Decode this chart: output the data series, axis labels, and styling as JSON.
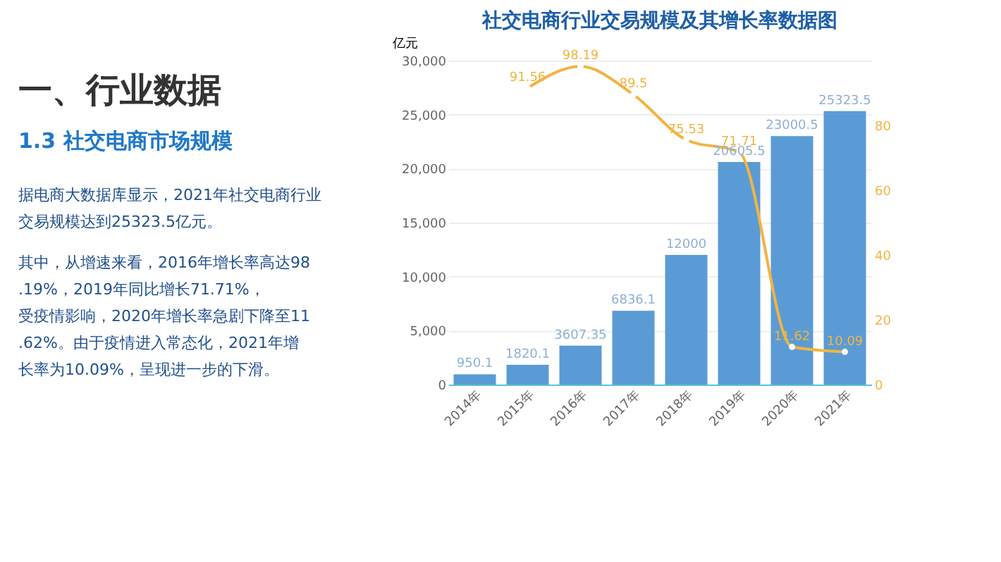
{
  "chart_data": [
    {
      "type": "other",
      "title": "一、行业数据",
      "subtitle": "1.3 社交电商市场规模",
      "annotations": [
        "据电商大数据库显示，2021年社交电商行业交易规模达到25323.5亿元。",
        "其中，从增速来看，2016年增长率高达98.19%，2019年同比增长71.71%，受疫情影响，2020年增长率急剧下降至11.62%。由于疫情进入常态化，2021年增长率为10.09%，呈现进一步的下滑。"
      ]
    },
    {
      "type": "bar",
      "title": "社交电商行业交易规模及其增长率数据图",
      "ylabel": "亿元",
      "categories": [
        "2014年",
        "2015年",
        "2016年",
        "2017年",
        "2018年",
        "2019年",
        "2020年",
        "2021年"
      ],
      "series": [
        {
          "type": "bar",
          "color": "#5b9bd5",
          "values": [
            950.1,
            1820.1,
            3607.35,
            6836.1,
            12000,
            20605.5,
            23000.5,
            25323.5
          ]
        },
        {
          "type": "line",
          "axis": "y2",
          "color": "#f2b441",
          "marker": "circle",
          "values": [
            null,
            91.56,
            98.19,
            89.5,
            75.53,
            71.71,
            11.62,
            10.09
          ]
        }
      ],
      "ylim": [
        0,
        30000
      ],
      "yticks": [
        0,
        {
          "value": 5000,
          "label": "5,000"
        },
        {
          "value": 10000,
          "label": "10,000"
        },
        {
          "value": 15000,
          "label": "15,000"
        },
        {
          "value": 20000,
          "label": "20,000"
        },
        {
          "value": 25000,
          "label": "25,000"
        },
        {
          "value": 30000,
          "label": "30,000"
        }
      ],
      "y2lim": [
        0,
        100
      ],
      "y2ticks": [
        0,
        20,
        40,
        60,
        80
      ],
      "grid": "y",
      "data_labels": true
    }
  ]
}
